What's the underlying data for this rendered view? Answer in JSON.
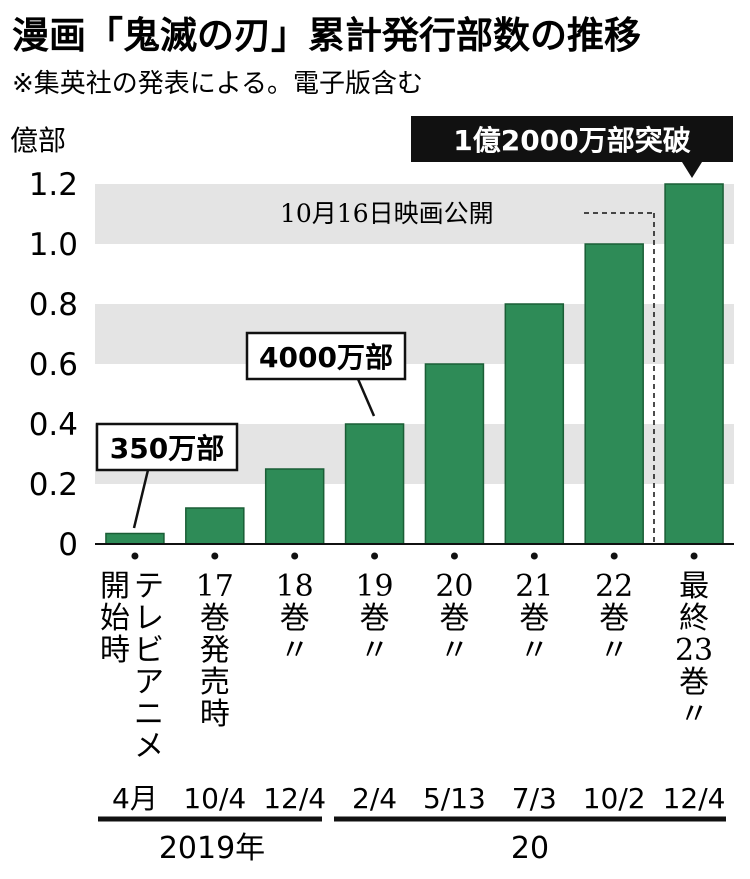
{
  "colors": {
    "bar": "#2e8b57",
    "bar_edge": "#1a5e36",
    "band": "#e4e4e4",
    "text": "#111111",
    "highlight_bg": "#111111",
    "highlight_text": "#ffffff"
  },
  "chart_data": {
    "type": "bar",
    "title": "漫画「鬼滅の刃」累計発行部数の推移",
    "subtitle": "※集英社の発表による。電子版含む",
    "ylabel": "億部",
    "ylim": [
      0,
      1.2
    ],
    "yticks": [
      "1.2",
      "1.0",
      "0.8",
      "0.6",
      "0.4",
      "0.2",
      "0"
    ],
    "tick_values": [
      1.2,
      1.0,
      0.8,
      0.6,
      0.4,
      0.2,
      0
    ],
    "categories": [
      [
        "テレビアニメ",
        "開始時"
      ],
      [
        "17",
        "巻発売時"
      ],
      [
        "18",
        "巻",
        "〃"
      ],
      [
        "19",
        "巻",
        "〃"
      ],
      [
        "20",
        "巻",
        "〃"
      ],
      [
        "21",
        "巻",
        "〃"
      ],
      [
        "22",
        "巻",
        "〃"
      ],
      [
        "最終",
        "23",
        "巻",
        "〃"
      ]
    ],
    "dates": [
      "4月",
      "10/4",
      "12/4",
      "2/4",
      "5/13",
      "7/3",
      "10/2",
      "12/4"
    ],
    "years": [
      "2019年",
      "20"
    ],
    "values": [
      0.035,
      0.12,
      0.25,
      0.4,
      0.6,
      0.8,
      1.0,
      1.2
    ],
    "annotations": {
      "a350": "350万部",
      "a4000": "4000万部",
      "a12000": "1億2000万部突破",
      "movie": "10月16日映画公開"
    },
    "grid": "alternating-bands",
    "legend": "none"
  }
}
